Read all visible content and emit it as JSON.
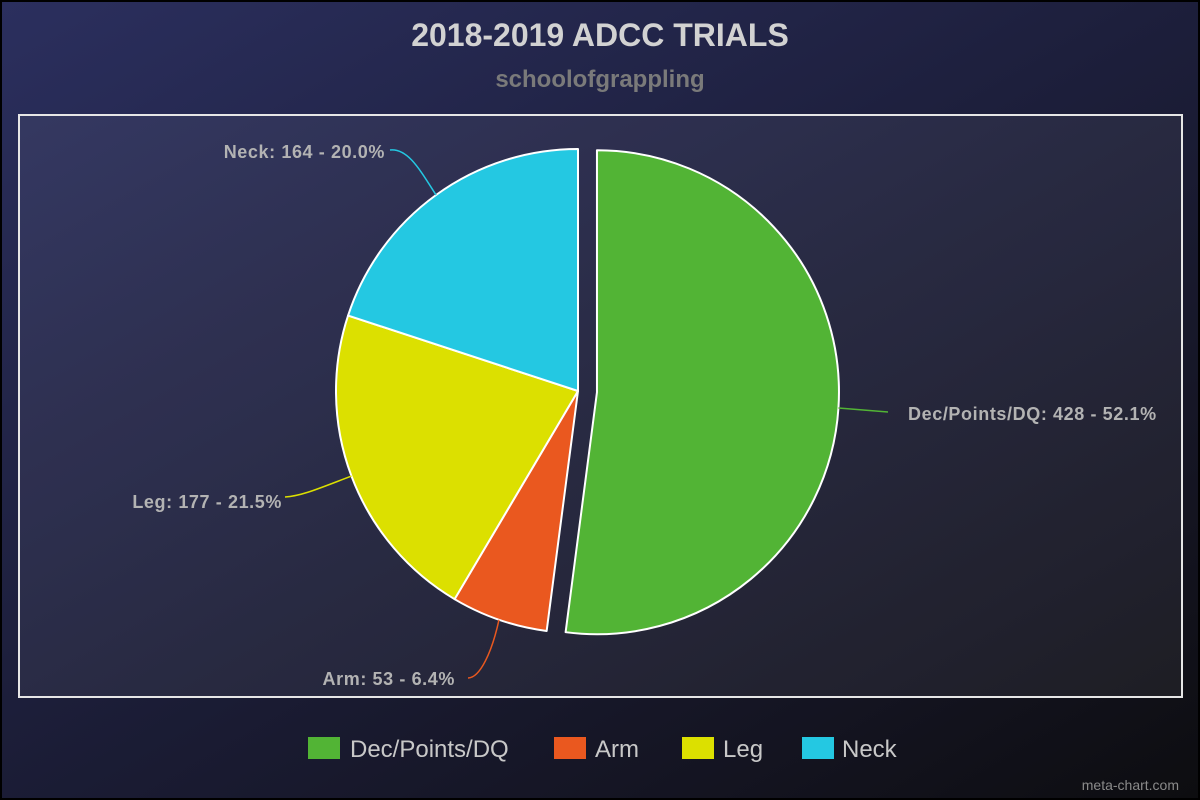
{
  "chart_data": {
    "type": "pie",
    "title": "2018-2019 ADCC TRIALS",
    "subtitle": "schoolofgrappling",
    "credit": "meta-chart.com",
    "legend_position": "bottom",
    "slices": [
      {
        "name": "Dec/Points/DQ",
        "value": 428,
        "percent": "52.1%",
        "label": "Dec/Points/DQ: 428 - 52.1%",
        "color": "#52b435",
        "exploded": true
      },
      {
        "name": "Arm",
        "value": 53,
        "percent": "6.4%",
        "label": "Arm: 53 - 6.4%",
        "color": "#ea581f",
        "exploded": false
      },
      {
        "name": "Leg",
        "value": 177,
        "percent": "21.5%",
        "label": "Leg: 177 - 21.5%",
        "color": "#dce000",
        "exploded": false
      },
      {
        "name": "Neck",
        "value": 164,
        "percent": "20.0%",
        "label": "Neck: 164 - 20.0%",
        "color": "#24c8e2",
        "exploded": false
      }
    ]
  }
}
